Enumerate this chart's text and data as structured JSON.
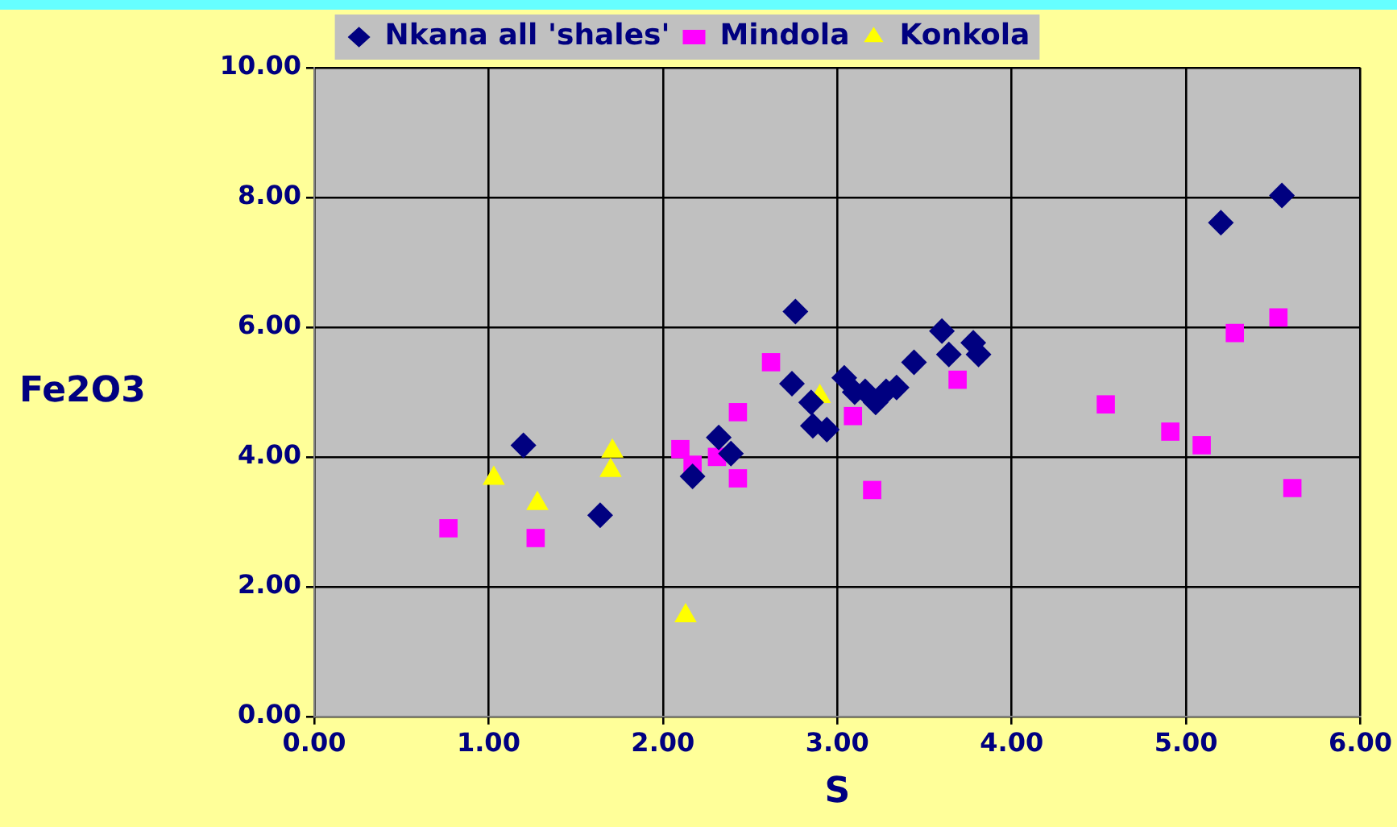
{
  "chart_data": {
    "type": "scatter",
    "xlabel": "S",
    "ylabel": "Fe2O3",
    "legend": "top",
    "grid": true,
    "xlim": [
      0,
      6
    ],
    "ylim": [
      0,
      10
    ],
    "xticks": [
      {
        "value": 0,
        "label": "0.00"
      },
      {
        "value": 1,
        "label": "1.00"
      },
      {
        "value": 2,
        "label": "2.00"
      },
      {
        "value": 3,
        "label": "3.00"
      },
      {
        "value": 4,
        "label": "4.00"
      },
      {
        "value": 5,
        "label": "5.00"
      },
      {
        "value": 6,
        "label": "6.00"
      }
    ],
    "yticks": [
      {
        "value": 0,
        "label": "0.00"
      },
      {
        "value": 2,
        "label": "2.00"
      },
      {
        "value": 4,
        "label": "4.00"
      },
      {
        "value": 6,
        "label": "6.00"
      },
      {
        "value": 8,
        "label": "8.00"
      },
      {
        "value": 10,
        "label": "10.00"
      }
    ],
    "series": [
      {
        "name": "Nkana all 'shales'",
        "color": "#000080",
        "marker": "diamond",
        "x": [
          1.2,
          1.64,
          2.17,
          2.32,
          2.39,
          2.76,
          2.74,
          2.85,
          2.86,
          2.94,
          3.04,
          3.1,
          3.16,
          3.22,
          3.28,
          3.34,
          3.44,
          3.6,
          3.64,
          3.78,
          3.81,
          5.2,
          5.55
        ],
        "values": [
          4.18,
          3.1,
          3.7,
          4.3,
          4.05,
          6.24,
          5.13,
          4.84,
          4.48,
          4.42,
          5.22,
          5.0,
          5.01,
          4.84,
          5.01,
          5.07,
          5.46,
          5.94,
          5.58,
          5.76,
          5.58,
          7.61,
          8.03
        ]
      },
      {
        "name": "Mindola",
        "color": "#ff00ff",
        "marker": "square",
        "x": [
          0.77,
          1.27,
          2.1,
          2.17,
          2.31,
          2.43,
          2.43,
          2.62,
          3.09,
          3.2,
          3.69,
          4.54,
          4.91,
          5.09,
          5.28,
          5.53,
          5.61
        ],
        "values": [
          2.9,
          2.75,
          4.12,
          3.88,
          4.0,
          4.69,
          3.67,
          5.46,
          4.63,
          3.49,
          5.19,
          4.81,
          4.39,
          4.18,
          5.91,
          6.15,
          3.52
        ]
      },
      {
        "name": "Konkola",
        "color": "#ffff00",
        "marker": "triangle",
        "x": [
          1.03,
          1.28,
          1.71,
          1.7,
          2.13,
          2.9
        ],
        "values": [
          3.67,
          3.28,
          4.09,
          3.79,
          1.55,
          4.93
        ]
      }
    ]
  }
}
